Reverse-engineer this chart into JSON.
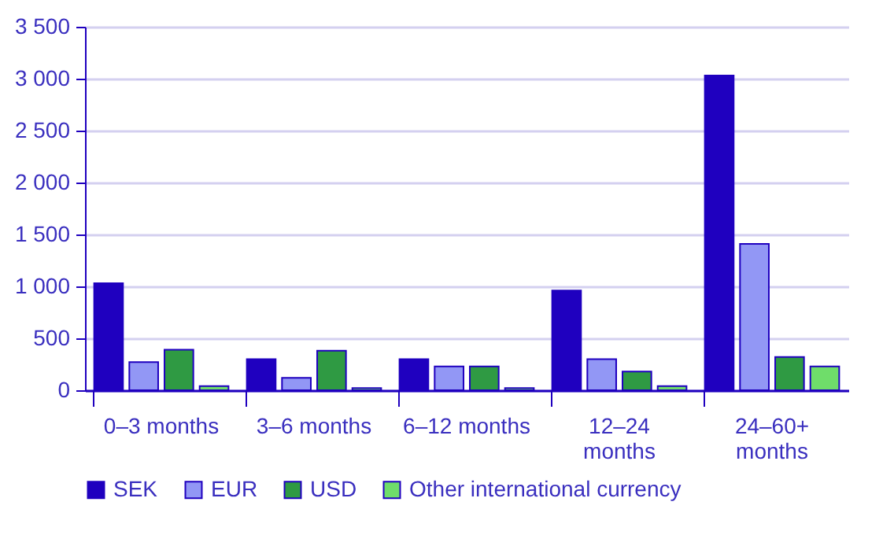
{
  "chart_data": {
    "type": "bar",
    "categories": [
      "0–3 months",
      "3–6 months",
      "6–12 months",
      "12–24 months",
      "24–60+ months"
    ],
    "series": [
      {
        "name": "SEK",
        "color": "#1f00bf",
        "values": [
          1030,
          300,
          300,
          960,
          3030
        ]
      },
      {
        "name": "EUR",
        "color": "#9297f5",
        "values": [
          270,
          120,
          230,
          300,
          1410
        ]
      },
      {
        "name": "USD",
        "color": "#2f9a43",
        "values": [
          390,
          380,
          230,
          180,
          320
        ]
      },
      {
        "name": "Other international currency",
        "color": "#6fdd6a",
        "values": [
          40,
          20,
          20,
          40,
          230
        ]
      }
    ],
    "ylim": [
      0,
      3500
    ],
    "yticks": [
      0,
      500,
      1000,
      1500,
      2000,
      2500,
      3000,
      3500
    ],
    "grid": "y",
    "legend": "bottom"
  }
}
